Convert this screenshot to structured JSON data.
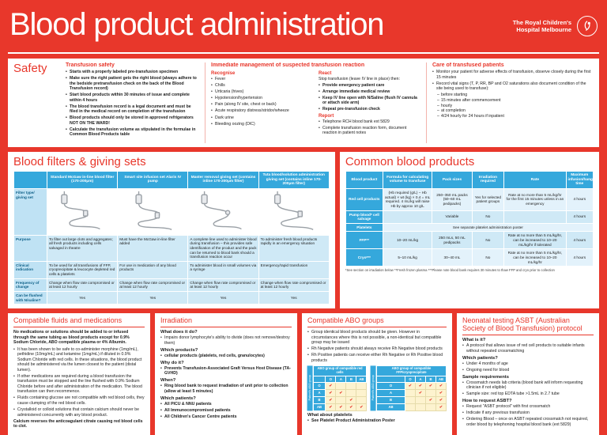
{
  "header": {
    "title": "Blood product administration",
    "org_line1": "The Royal Children's",
    "org_line2": "Hospital Melbourne"
  },
  "safety": {
    "title": "Safety",
    "transfusion_safety": {
      "title": "Transfusion safety",
      "bullets": [
        "Starts with a properly labeled pre-transfusion specimen",
        "Make sure the right patient gets the right blood (always adhere to the bedside pretransfusion check on the back of the Blood Transfusion record)",
        "Start blood products within 30 minutes of issue and complete within 4 hours",
        "The blood transfusion record is a legal document and must be filed in the medical record on completion of the transfusion",
        "Blood products should only be stored in approved refrigerators NOT ON THE WARD!",
        "Calculate the transfusion volume as stipulated in the formulae in Common Blood Products table"
      ]
    },
    "immediate": {
      "title": "Immediate management of suspected transfusion reaction",
      "recognise_title": "Recognise",
      "recognise": [
        "Fever",
        "Chills",
        "Urticaria (hives)",
        "Hypotension/hypertension",
        "Pain (along IV site, chest or back)",
        "Acute respiratory distress/stridor/wheeze",
        "Dark urine",
        "Bleeding oozing (DIC)"
      ],
      "react_title": "React",
      "react_intro": "Stop transfusion (leave IV line in place) then:",
      "react": [
        "Provide emergency patient care",
        "Arrange immediate medical review",
        "Keep IV line open with N/Saline (flush IV cannula or attach side arm)",
        "Repeat pre-transfusion check"
      ],
      "report_title": "Report",
      "report": [
        "Telephone RCH blood bank ext 5829",
        "Complete transfusion reaction form, document reaction in patient notes"
      ]
    },
    "care": {
      "title": "Care of transfused patients",
      "bullets": [
        "Monitor your patient for adverse effects of transfusion, observe closely during the first 15 minutes",
        "Record vital signs (T, P, RR, BP and O2 saturations also document condition of the site being used to transfuse):"
      ],
      "sub_bullets": [
        "before starting",
        "15 minutes after commencement",
        "hourly",
        "at completion",
        "4/24 hourly for 24 hours if inpatient"
      ]
    }
  },
  "filters": {
    "title": "Blood filters & giving sets",
    "row_labels": [
      "Filter type/ giving set",
      "Purpose",
      "Clinical indication",
      "Frequency of change",
      "Can be flushed with N/saline?"
    ],
    "columns": [
      {
        "header": "Standard McGaw in-line blood filter (170-200μm)",
        "purpose": "To filter out large clots and aggregates; all fresh products including cells salvaged in theatre",
        "indication": "To be used for all transfusions of FFP, cryoprecipitate & leucocyte depleted red cells & platelets",
        "change": "Change when flow rate compromised or at least 12 hourly",
        "flush": "Yes"
      },
      {
        "header": "Smart site infusion set Alaris IV pump",
        "purpose": "Must have the McGaw in-line filter added",
        "indication": "For use in medication of any blood products",
        "change": "Change when flow rate compromised or at least 12 hourly",
        "flush": "Yes"
      },
      {
        "header": "Master removal giving set (contains inline 170-200μm filter)",
        "purpose": "A complete line used to administer blood during transfusion – this provides safe identification of the product and the pack can be returned to blood bank should a transfusion reaction occur",
        "indication": "To administer blood in small volumes via a syringe",
        "change": "Change when flow rate compromised or at least 12 hourly",
        "flush": "Yes"
      },
      {
        "header": "Tuta blood/solution administration giving set (contains inline 170-200μm filter)",
        "purpose": "To administer fresh blood products rapidly in an emergency situation",
        "indication": "Emergency/rapid transfusion",
        "change": "Change when flow rate compromised or at least 12 hourly",
        "flush": "Yes"
      }
    ]
  },
  "products": {
    "title": "Common blood products",
    "headers": [
      "Blood product",
      "Formula for calculating volume to transfuse",
      "Pack sizes",
      "Irradiation required",
      "Rate",
      "Maximum infusion/hang time"
    ],
    "rows": [
      {
        "product": "Red cell products",
        "formula": "(Hb required (g/L) − Hb actual) × wt (kg) × 0.4 = mL required. 4 mL/kg will raise Hb by approx 10 g/L",
        "pack": "250–350 mL packs (50–60 mL pedipacks)",
        "irradiation": "Yes for selected patient groups",
        "rate": "Rate at no more than 5 mL/kg/hr for the first 15 minutes unless in an emergency",
        "max": "4 hours"
      },
      {
        "product": "Pump blood* cell salvage",
        "formula": "",
        "pack": "Variable",
        "irradiation": "No",
        "rate": "",
        "max": "4 hours"
      },
      {
        "product": "FFP**",
        "formula": "10–20 mL/kg",
        "pack": "250 mLs, 50 mL pedipacks",
        "irradiation": "No",
        "rate": "Rate at no more than 5 mL/kg/hr, can be increased to 10–20 mL/kg/hr if tolerated",
        "max": "4 hours"
      },
      {
        "product": "Cryo***",
        "formula": "5–10 mL/kg",
        "pack": "30–40 mL",
        "irradiation": "No",
        "rate": "Rate at no more than 5 mL/kg/hr, can be increased to 10–20 mL/kg/hr",
        "max": "4 hours"
      }
    ],
    "platelets": {
      "product": "Platelets",
      "note": "See separate platelet administration poster"
    },
    "footnote": "*See section on irradiation below   **Fresh frozen plasma   ***Please note blood bank requires 30 minutes to thaw FFP and cryo prior to collection"
  },
  "fluids": {
    "title": "Compatible fluids and medications",
    "intro": "No medications or solutions should be added to or infused through the same tubing as blood products except for 0.9% Sodium Chloride, ABO compatible plasma or 4% Albumin.",
    "bullets": [
      "It has been shown to be safe to co-administer morphine (1mg/mL), pethidine (10mg/mL) and ketamine (1mg/mL) if diluted in 0.9% Sodium Chloride with red cells. In these situations, the blood product should be administered via the lumen closest to the patient (distal lumen).",
      "If other medications are required during a blood transfusion the transfusion must be stopped and the line flushed with 0.9% Sodium Chloride before and after administration of the medication. The blood transfusion can then recommence.",
      "Fluids containing glucose are not compatible with red blood cells, they cause clumping of the red blood cells.",
      "Crystalloid or colloid solutions that contain calcium should never be administered concurrently with any blood product."
    ],
    "outro": "Calcium reverses the anticoagulant citrate causing red blood cells to clot."
  },
  "irradiation": {
    "title": "Irradiation",
    "qa": [
      {
        "q": "What does it do?",
        "a": [
          "Impairs donor lymphocyte's ability to divide (does not remove/destroy them)"
        ]
      },
      {
        "q": "Which products?",
        "a": [
          "cellular products (platelets, red cells, granulocytes)"
        ]
      },
      {
        "q": "Why do it?",
        "a": [
          "Prevents Transfusion-Associated Graft Versus Host Disease (TA-GVHD)"
        ]
      },
      {
        "q": "When?",
        "a": [
          "Ring blood bank to request irradiation of unit prior to collection (allow at least 5 minutes)"
        ]
      },
      {
        "q": "Which patients?",
        "a": [
          "All PICU & NNU patients",
          "All Immunocompromised patients",
          "All Children's Cancer Centre patients"
        ]
      }
    ]
  },
  "abo": {
    "title": "Compatible ABO groups",
    "bullets": [
      "Group identical blood products should be given. However in circumstances where this is not possible, a non-identical but compatible group may be issued",
      "Rh Negative patients should always receive Rh Negative blood products",
      "Rh Positive patients can receive either Rh Negative or Rh Positive blood products"
    ],
    "side_label": "Patient's ABO group",
    "red_cells": {
      "title": "ABO group of compatible red cells",
      "cols": [
        "O",
        "A",
        "B",
        "AB"
      ],
      "check": "✔",
      "rows": [
        {
          "label": "O",
          "cells": [
            1,
            0,
            0,
            0
          ]
        },
        {
          "label": "A",
          "cells": [
            1,
            1,
            0,
            0
          ]
        },
        {
          "label": "B",
          "cells": [
            1,
            0,
            1,
            0
          ]
        },
        {
          "label": "AB",
          "cells": [
            1,
            1,
            1,
            1
          ]
        }
      ]
    },
    "ffp": {
      "title": "ABO group of compatible FFP/cryoprecipitate",
      "cols": [
        "O",
        "A",
        "B",
        "AB"
      ],
      "check": "✔",
      "rows": [
        {
          "label": "O",
          "cells": [
            1,
            1,
            1,
            1
          ]
        },
        {
          "label": "A",
          "cells": [
            0,
            1,
            0,
            1
          ]
        },
        {
          "label": "B",
          "cells": [
            0,
            0,
            1,
            1
          ]
        },
        {
          "label": "AB",
          "cells": [
            0,
            0,
            0,
            1
          ]
        }
      ]
    },
    "platelets_title": "What about platelets",
    "platelets": [
      "See Platelet Product Administration Poster"
    ]
  },
  "neonatal": {
    "title": "Neonatal testing ASBT (Australian Society of Blood Transfusion) protocol",
    "qa": [
      {
        "q": "What is it?",
        "a": [
          "A protocol that allows issue of red cell products to suitable infants without repeated crossmatching"
        ]
      },
      {
        "q": "Which patients?",
        "a": [
          "Under 4 months of age",
          "Ongoing need for blood"
        ]
      },
      {
        "q": "Sample requirements",
        "a": [
          "Crossmatch needs lab criteria (blood bank will inform requesting clinician if not eligible)",
          "Sample size: red top EDTA tube >1.5mL in 2.7 tube"
        ]
      },
      {
        "q": "How to request ASBT?",
        "a": [
          "Request \"ASBT protocol\" with first crossmatch",
          "Indicate if any previous transfusion",
          "Ordering Blood – once on ASBT repeated crossmatch not required, order blood by telephoning hospital blood bank (ext 5829)"
        ]
      }
    ]
  }
}
